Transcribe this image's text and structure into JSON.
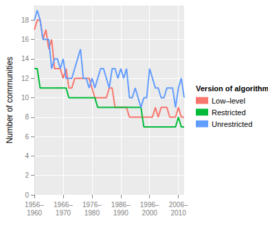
{
  "chart_data": {
    "type": "line",
    "y_label": "Number of communities",
    "legend_title": "Version of algorithm",
    "legend": "right",
    "grid": true,
    "categories": [
      "1956–\n1960",
      null,
      null,
      null,
      null,
      null,
      null,
      null,
      null,
      null,
      "1966–\n1970",
      null,
      null,
      null,
      null,
      null,
      null,
      null,
      null,
      null,
      "1976–\n1980",
      null,
      null,
      null,
      null,
      null,
      null,
      null,
      null,
      null,
      "1986–\n1990",
      null,
      null,
      null,
      null,
      null,
      null,
      null,
      null,
      null,
      "1996–\n2000",
      null,
      null,
      null,
      null,
      null,
      null,
      null,
      null,
      null,
      "2006–\n2010",
      null,
      null
    ],
    "ylim": [
      0,
      19.5
    ],
    "yticks": [
      0,
      2,
      4,
      6,
      8,
      10,
      12,
      14,
      16,
      18
    ],
    "series": [
      {
        "name": "Low–level",
        "color": "#F8766D",
        "values": [
          17,
          18,
          18,
          16,
          17,
          15,
          16,
          13,
          13,
          13,
          12,
          13,
          11,
          11,
          12,
          12,
          12,
          12,
          12,
          12,
          11,
          10,
          10,
          10,
          10,
          10,
          11,
          11,
          9,
          9,
          9,
          9,
          9,
          8,
          8,
          8,
          8,
          8,
          8,
          8,
          8,
          8,
          9,
          8,
          9,
          9,
          9,
          8,
          8,
          8,
          9,
          8,
          8
        ]
      },
      {
        "name": "Restricted",
        "color": "#00BA38",
        "values": [
          13,
          13,
          11,
          11,
          11,
          11,
          11,
          11,
          11,
          11,
          11,
          11,
          10,
          10,
          10,
          10,
          10,
          10,
          10,
          10,
          10,
          10,
          9,
          9,
          9,
          9,
          9,
          9,
          9,
          9,
          9,
          9,
          9,
          9,
          9,
          9,
          9,
          9,
          7,
          7,
          7,
          7,
          7,
          7,
          7,
          7,
          7,
          7,
          7,
          7,
          8,
          7,
          7
        ]
      },
      {
        "name": "Unrestricted",
        "color": "#619CFF",
        "values": [
          18,
          19,
          18,
          16,
          16,
          16,
          13,
          14,
          14,
          13,
          14,
          12,
          12,
          12,
          13,
          14,
          15,
          12,
          12,
          11,
          12,
          11,
          12,
          13,
          13,
          12,
          11,
          13,
          13,
          12,
          13,
          12,
          13,
          10,
          10,
          11,
          10,
          9,
          10,
          10,
          13,
          12,
          11,
          11,
          10,
          10,
          11,
          11,
          11,
          9,
          11,
          12,
          10
        ]
      }
    ]
  }
}
